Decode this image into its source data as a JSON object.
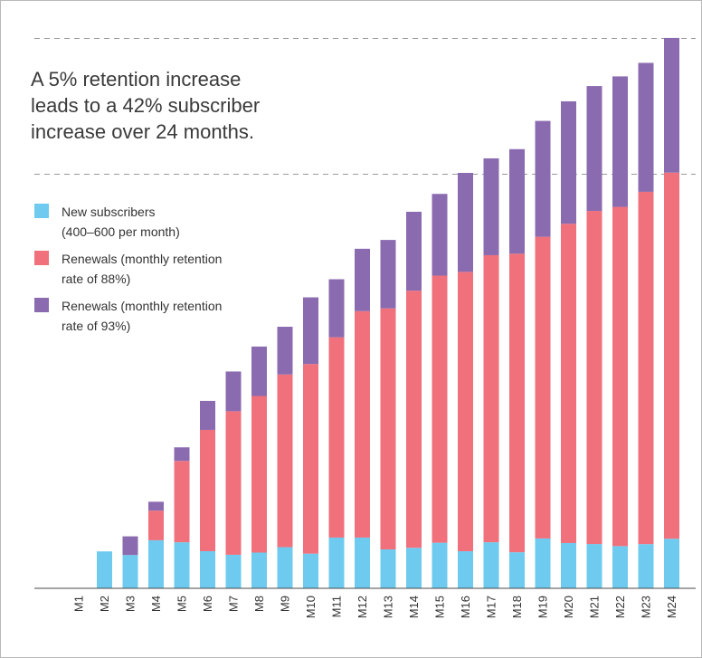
{
  "headline": {
    "lines": [
      "A 5% retention increase",
      "leads to a 42% subscriber",
      "increase over 24 months."
    ]
  },
  "legend": [
    {
      "lines": [
        "New subscribers",
        "(400–600 per month)"
      ],
      "color": "#6ecbef"
    },
    {
      "lines": [
        "Renewals (monthly retention",
        "rate of 88%)"
      ],
      "color": "#f0707c"
    },
    {
      "lines": [
        "Renewals (monthly retention",
        "rate of 93%)"
      ],
      "color": "#8b6bb0"
    }
  ],
  "chart_data": {
    "type": "bar",
    "stacked": true,
    "categories": [
      "M1",
      "M2",
      "M3",
      "M4",
      "M5",
      "M6",
      "M7",
      "M8",
      "M9",
      "M10",
      "M11",
      "M12",
      "M13",
      "M14",
      "M15",
      "M16",
      "M17",
      "M18",
      "M19",
      "M20",
      "M21",
      "M22",
      "M23",
      "M24"
    ],
    "series": [
      {
        "name": "New subscribers (400–600 per month)",
        "color": "#6ecbef",
        "values": [
          0,
          481,
          434,
          626,
          600,
          484,
          437,
          466,
          536,
          452,
          661,
          661,
          507,
          528,
          594,
          483,
          600,
          470,
          650,
          590,
          577,
          550,
          576,
          646
        ]
      },
      {
        "name": "Renewals (monthly retention rate of 88%)",
        "color": "#f0707c",
        "values": [
          0,
          0,
          0,
          386,
          1060,
          1580,
          1870,
          2040,
          2250,
          2470,
          2610,
          2950,
          3140,
          3350,
          3480,
          3640,
          3740,
          3890,
          3930,
          4160,
          4340,
          4420,
          4590,
          4770
        ]
      },
      {
        "name": "Renewals (monthly retention rate of 93%)",
        "color": "#8b6bb0",
        "values": [
          0,
          0,
          243,
          116,
          177,
          378,
          518,
          644,
          622,
          869,
          756,
          813,
          892,
          1028,
          1065,
          1290,
          1262,
          1362,
          1510,
          1595,
          1627,
          1700,
          1680,
          1755
        ]
      }
    ],
    "ylim": [
      0,
      7170
    ],
    "reference_lines": [
      5400,
      7170
    ],
    "grid": false,
    "legend_position": "left"
  }
}
